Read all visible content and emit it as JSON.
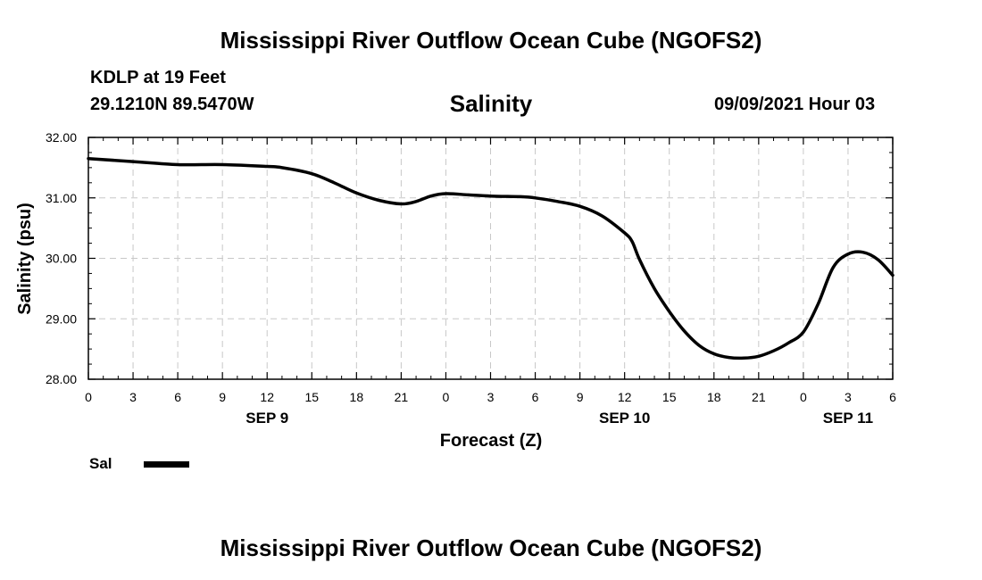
{
  "header": {
    "title": "Mississippi River Outflow Ocean Cube (NGOFS2)",
    "station": "KDLP at 19 Feet",
    "coordinates": "29.1210N  89.5470W",
    "variable": "Salinity",
    "datetime": "09/09/2021 Hour 03"
  },
  "footer": {
    "title": "Mississippi River Outflow Ocean Cube (NGOFS2)"
  },
  "legend": {
    "label": "Sal",
    "color": "#000000"
  },
  "chart_data": {
    "type": "line",
    "title": "Salinity",
    "xlabel": "Forecast (Z)",
    "ylabel": "Salinity (psu)",
    "xlim": [
      0,
      54
    ],
    "ylim": [
      28,
      32
    ],
    "grid": true,
    "legend_position": "bottom-left",
    "x_ticks": [
      0,
      3,
      6,
      9,
      12,
      15,
      18,
      21,
      24,
      27,
      30,
      33,
      36,
      39,
      42,
      45,
      48,
      51,
      54
    ],
    "x_tick_labels": [
      "0",
      "3",
      "6",
      "9",
      "12",
      "15",
      "18",
      "21",
      "0",
      "3",
      "6",
      "9",
      "12",
      "15",
      "18",
      "21",
      "0",
      "3",
      "6"
    ],
    "date_labels": [
      {
        "x": 12,
        "label": "SEP 9"
      },
      {
        "x": 36,
        "label": "SEP 10"
      },
      {
        "x": 51,
        "label": "SEP 11"
      }
    ],
    "y_ticks": [
      28,
      29,
      30,
      31,
      32
    ],
    "y_tick_labels": [
      "28.00",
      "29.00",
      "30.00",
      "31.00",
      "32.00"
    ],
    "series": [
      {
        "name": "Sal",
        "color": "#000000",
        "x": [
          0,
          3,
          6,
          9,
          12,
          13,
          15,
          16.5,
          18,
          19.5,
          21,
          22,
          23,
          24,
          25.5,
          27,
          29,
          30,
          31.5,
          33,
          34.5,
          36,
          36.5,
          37,
          38,
          39,
          40,
          41,
          42,
          43,
          44,
          45,
          46,
          47,
          48,
          49,
          50,
          51,
          52,
          53,
          54
        ],
        "y": [
          31.65,
          31.6,
          31.55,
          31.55,
          31.52,
          31.5,
          31.4,
          31.25,
          31.08,
          30.96,
          30.9,
          30.94,
          31.03,
          31.07,
          31.05,
          31.03,
          31.02,
          31.0,
          30.94,
          30.86,
          30.7,
          30.42,
          30.28,
          29.98,
          29.5,
          29.12,
          28.8,
          28.56,
          28.42,
          28.36,
          28.35,
          28.38,
          28.47,
          28.6,
          28.78,
          29.25,
          29.85,
          30.07,
          30.1,
          29.98,
          29.72
        ]
      }
    ]
  }
}
